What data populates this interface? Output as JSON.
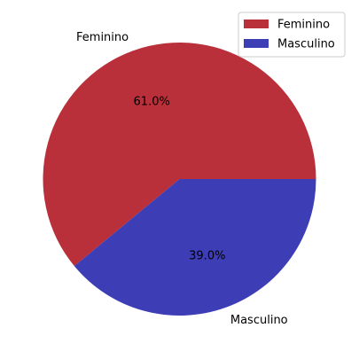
{
  "chart_data": {
    "type": "pie",
    "categories": [
      "Feminino",
      "Masculino"
    ],
    "values": [
      61.0,
      39.0
    ],
    "percent_labels": [
      "61.0%",
      "39.0%"
    ],
    "colors": [
      "#b9303b",
      "#3d3db5"
    ],
    "start_angle_deg": 0,
    "direction": "counterclockwise",
    "legend": {
      "position": "top-right",
      "entries": [
        "Feminino",
        "Masculino"
      ]
    }
  }
}
